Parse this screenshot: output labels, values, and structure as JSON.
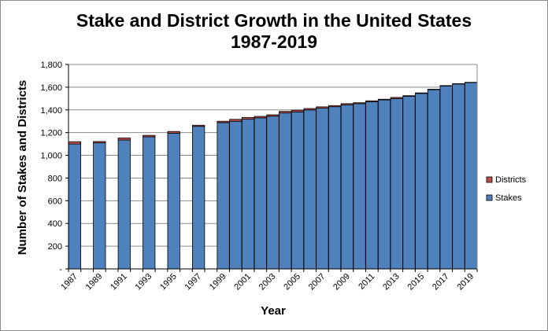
{
  "chart_data": {
    "type": "bar",
    "stacked": true,
    "title_line1": "Stake and District Growth in the United States",
    "title_line2": "1987-2019",
    "xlabel": "Year",
    "ylabel": "Number of Stakes and Districts",
    "ylim": [
      0,
      1800
    ],
    "yticks": [
      0,
      200,
      400,
      600,
      800,
      1000,
      1200,
      1400,
      1600,
      1800
    ],
    "ytick_labels": [
      "-",
      "200",
      "400",
      "600",
      "800",
      "1,000",
      "1,200",
      "1,400",
      "1,600",
      "1,800"
    ],
    "grid": true,
    "legend_position": "right",
    "categories": [
      "1987",
      "1988",
      "1989",
      "1990",
      "1991",
      "1992",
      "1993",
      "1994",
      "1995",
      "1996",
      "1997",
      "1998",
      "1999",
      "2000",
      "2001",
      "2002",
      "2003",
      "2004",
      "2005",
      "2006",
      "2007",
      "2008",
      "2009",
      "2010",
      "2011",
      "2012",
      "2013",
      "2014",
      "2015",
      "2016",
      "2017",
      "2018",
      "2019"
    ],
    "xtick_labels": [
      "1987",
      "1989",
      "1991",
      "1993",
      "1995",
      "1997",
      "1999",
      "2001",
      "2003",
      "2005",
      "2007",
      "2009",
      "2011",
      "2013",
      "2015",
      "2017",
      "2019"
    ],
    "series": [
      {
        "name": "Stakes",
        "color": "#4f81bd",
        "values": [
          1100,
          null,
          1110,
          null,
          1135,
          null,
          1163,
          null,
          1195,
          null,
          1255,
          null,
          1288,
          1300,
          1318,
          1330,
          1345,
          1373,
          1382,
          1400,
          1415,
          1428,
          1445,
          1455,
          1472,
          1488,
          1500,
          1520,
          1545,
          1578,
          1610,
          1628,
          1640
        ]
      },
      {
        "name": "Districts",
        "color": "#c0504d",
        "values": [
          20,
          null,
          12,
          null,
          18,
          null,
          13,
          null,
          15,
          null,
          10,
          null,
          12,
          17,
          15,
          13,
          12,
          14,
          15,
          12,
          12,
          10,
          10,
          8,
          8,
          6,
          10,
          5,
          5,
          4,
          4,
          3,
          3
        ]
      }
    ]
  }
}
